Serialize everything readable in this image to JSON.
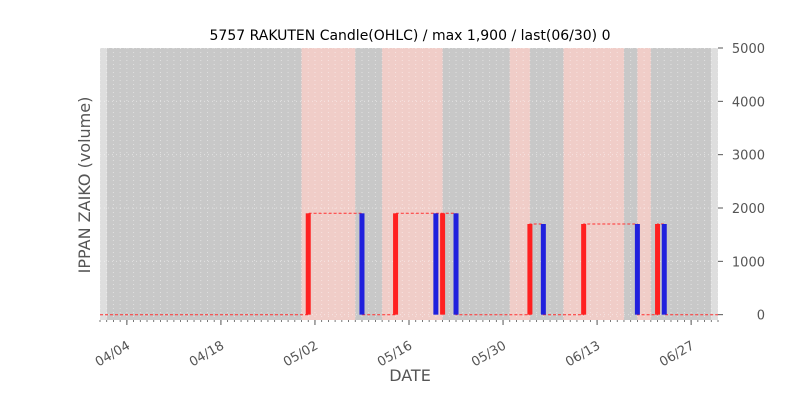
{
  "chart_data": {
    "type": "bar",
    "title": "5757 RAKUTEN Candle(OHLC) / max 1,900 / last(06/30) 0",
    "xlabel": "DATE",
    "ylabel": "IPPAN ZAIKO (volume)",
    "ylim": [
      -100,
      5000
    ],
    "yticks": [
      0,
      1000,
      2000,
      3000,
      4000,
      5000
    ],
    "y_axis_side": "right",
    "xlim": [
      "2024-03-31",
      "2024-07-01"
    ],
    "xticks": [
      {
        "date": "2024-04-04",
        "label": "04/04"
      },
      {
        "date": "2024-04-18",
        "label": "04/18"
      },
      {
        "date": "2024-05-02",
        "label": "05/02"
      },
      {
        "date": "2024-05-16",
        "label": "05/16"
      },
      {
        "date": "2024-05-30",
        "label": "05/30"
      },
      {
        "date": "2024-06-13",
        "label": "06/13"
      },
      {
        "date": "2024-06-27",
        "label": "06/27"
      }
    ],
    "grid": true,
    "colors": {
      "background": "#c8c8c8",
      "highlight": "#f0cdc8",
      "up": "#ff2020",
      "down": "#2020dd",
      "level_line": "#ff3030"
    },
    "highlight_ranges": [
      [
        "2024-04-30",
        "2024-05-08"
      ],
      [
        "2024-05-12",
        "2024-05-21"
      ],
      [
        "2024-05-31",
        "2024-06-03"
      ],
      [
        "2024-06-08",
        "2024-06-17"
      ],
      [
        "2024-06-19",
        "2024-06-21"
      ]
    ],
    "candles": [
      {
        "date": "2024-05-01",
        "open": 0,
        "close": 1900
      },
      {
        "date": "2024-05-09",
        "open": 1900,
        "close": 0
      },
      {
        "date": "2024-05-14",
        "open": 0,
        "close": 1900
      },
      {
        "date": "2024-05-20",
        "open": 1900,
        "close": 0
      },
      {
        "date": "2024-05-21",
        "open": 0,
        "close": 1900
      },
      {
        "date": "2024-05-23",
        "open": 1900,
        "close": 0
      },
      {
        "date": "2024-06-03",
        "open": 0,
        "close": 1700
      },
      {
        "date": "2024-06-05",
        "open": 1700,
        "close": 0
      },
      {
        "date": "2024-06-11",
        "open": 0,
        "close": 1700
      },
      {
        "date": "2024-06-19",
        "open": 1700,
        "close": 0
      },
      {
        "date": "2024-06-22",
        "open": 0,
        "close": 1700
      },
      {
        "date": "2024-06-23",
        "open": 1700,
        "close": 0
      }
    ],
    "level_line": [
      [
        "2024-03-31",
        0
      ],
      [
        "2024-05-01",
        0
      ],
      [
        "2024-05-01",
        1900
      ],
      [
        "2024-05-09",
        1900
      ],
      [
        "2024-05-09",
        0
      ],
      [
        "2024-05-14",
        0
      ],
      [
        "2024-05-14",
        1900
      ],
      [
        "2024-05-23",
        1900
      ],
      [
        "2024-05-23",
        0
      ],
      [
        "2024-06-03",
        0
      ],
      [
        "2024-06-03",
        1700
      ],
      [
        "2024-06-05",
        1700
      ],
      [
        "2024-06-05",
        0
      ],
      [
        "2024-06-11",
        0
      ],
      [
        "2024-06-11",
        1700
      ],
      [
        "2024-06-19",
        1700
      ],
      [
        "2024-06-19",
        0
      ],
      [
        "2024-06-22",
        0
      ],
      [
        "2024-06-22",
        1700
      ],
      [
        "2024-06-23",
        1700
      ],
      [
        "2024-06-23",
        0
      ],
      [
        "2024-07-01",
        0
      ]
    ]
  }
}
